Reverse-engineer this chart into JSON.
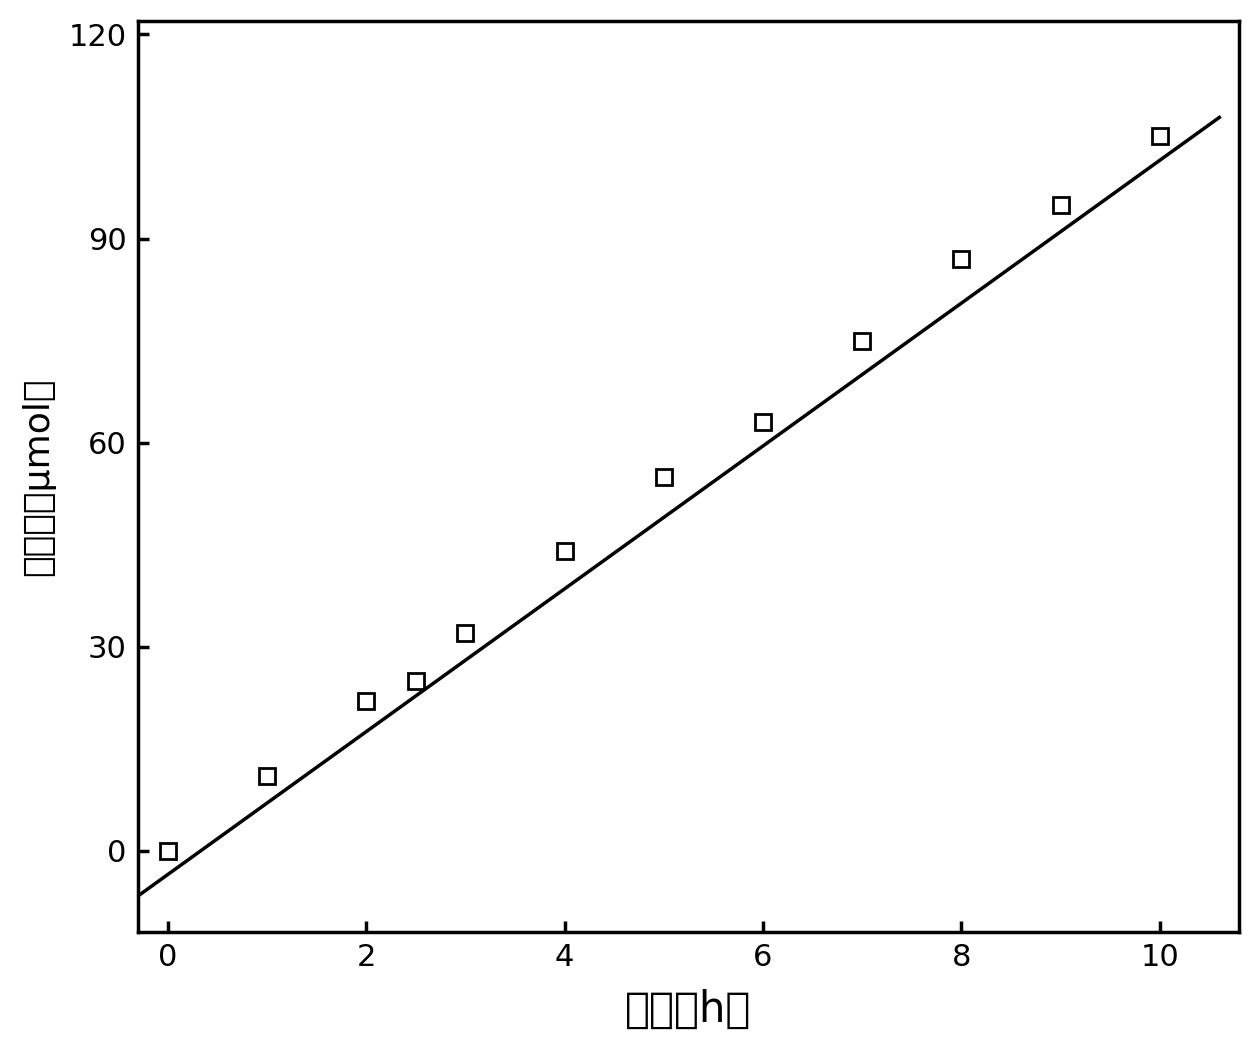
{
  "x_data": [
    0,
    1,
    2,
    2.5,
    3,
    4,
    5,
    6,
    7,
    8,
    9,
    10
  ],
  "y_data": [
    0,
    11,
    22,
    25,
    32,
    44,
    55,
    63,
    75,
    87,
    95,
    105
  ],
  "line_x_start": -0.3,
  "line_x_end": 10.6,
  "line_slope": 10.5,
  "line_intercept": -3.5,
  "xlim": [
    -0.3,
    10.8
  ],
  "ylim": [
    -12,
    122
  ],
  "xticks": [
    0,
    2,
    4,
    6,
    8,
    10
  ],
  "yticks": [
    0,
    30,
    60,
    90,
    120
  ],
  "xlabel": "时间（h）",
  "ylabel": "产氢量（μmol）",
  "line_color": "#000000",
  "marker_facecolor": "#ffffff",
  "marker_edgecolor": "#000000",
  "background_color": "#ffffff",
  "line_width": 2.5,
  "marker_size": 12,
  "marker_edge_width": 2.0,
  "xlabel_fontsize": 30,
  "ylabel_fontsize": 26,
  "tick_fontsize": 22,
  "axis_linewidth": 2.5
}
